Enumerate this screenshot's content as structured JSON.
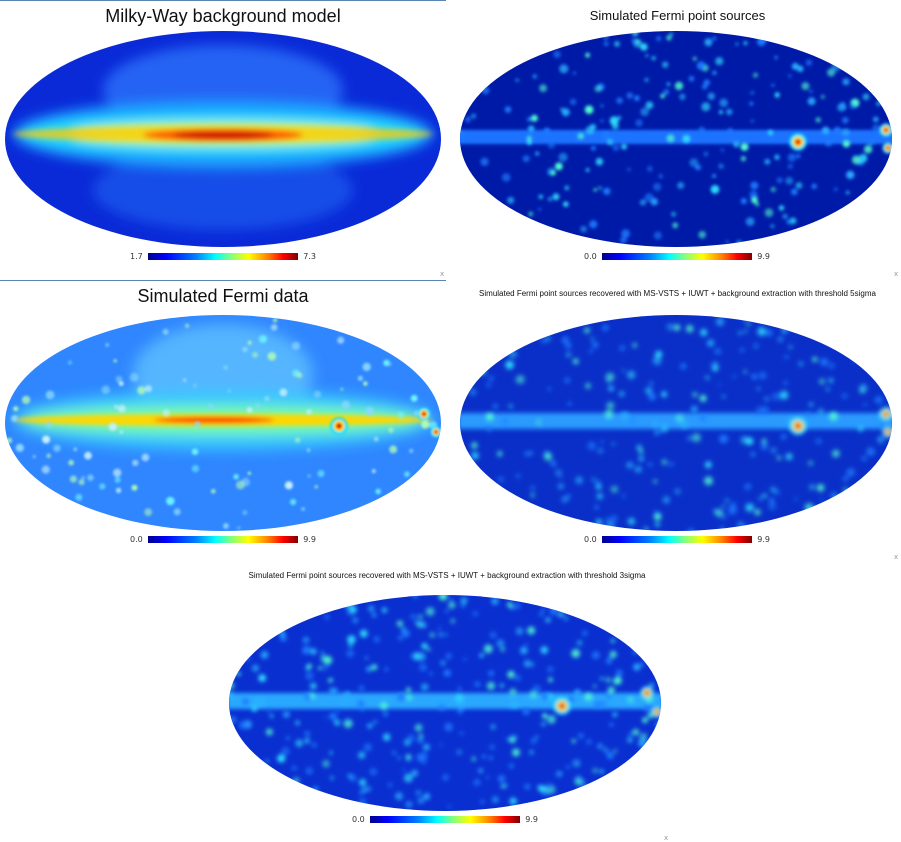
{
  "panels": {
    "background": {
      "title": "Milky-Way background model",
      "cbar_min": "1.7",
      "cbar_max": "7.3"
    },
    "point_sources": {
      "title": "Simulated Fermi point sources",
      "cbar_min": "0.0",
      "cbar_max": "9.9"
    },
    "fermi_data": {
      "title": "Simulated Fermi data",
      "cbar_min": "0.0",
      "cbar_max": "9.9"
    },
    "recovered_5sigma": {
      "title": "Simulated Fermi point sources recovered with MS-VSTS + IUWT + background extraction with threshold 5sigma",
      "cbar_min": "0.0",
      "cbar_max": "9.9"
    },
    "recovered_3sigma": {
      "title": "Simulated Fermi point sources recovered with MS-VSTS + IUWT + background extraction with threshold 3sigma",
      "cbar_min": "0.0",
      "cbar_max": "9.9"
    }
  },
  "colormap": [
    "#00008f",
    "#0000ff",
    "#0080ff",
    "#00ffff",
    "#80ff80",
    "#ffff00",
    "#ff8000",
    "#ff0000",
    "#800000"
  ],
  "corner_mark": "x"
}
